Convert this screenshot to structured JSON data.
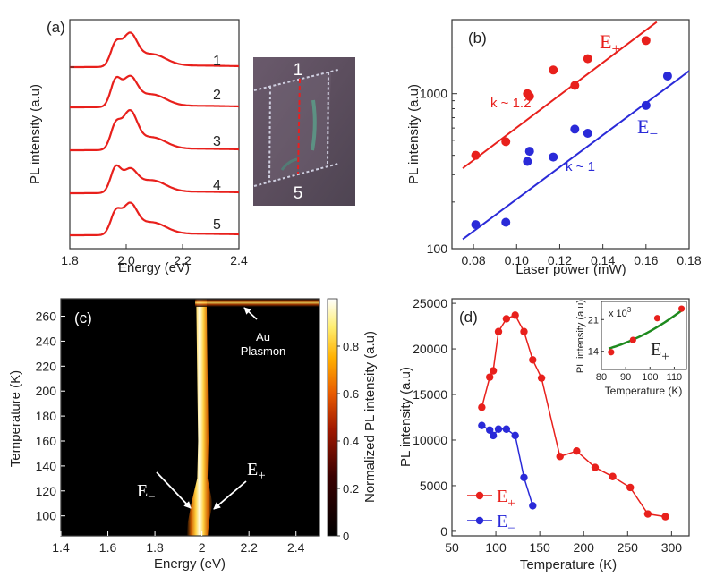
{
  "chart_data": [
    {
      "panel": "(a)",
      "type": "line",
      "xlabel": "Energy (eV)",
      "ylabel": "PL intensity (a.u)",
      "xlim": [
        1.8,
        2.4
      ],
      "xticks": [
        "1.8",
        "2.0",
        "2.2",
        "2.4"
      ],
      "color": "#e8201c",
      "series": [
        {
          "name": "1",
          "a1": 0.55,
          "a2": 0.8
        },
        {
          "name": "2",
          "a1": 0.65,
          "a2": 0.72
        },
        {
          "name": "3",
          "a1": 0.6,
          "a2": 0.95
        },
        {
          "name": "4",
          "a1": 0.62,
          "a2": 0.55
        },
        {
          "name": "5",
          "a1": 0.55,
          "a2": 0.75
        }
      ],
      "image_labels": [
        "1",
        "5"
      ]
    },
    {
      "panel": "(b)",
      "type": "scatter",
      "xlabel": "Laser power (mW)",
      "ylabel": "PL intensity (a.u)",
      "xlim": [
        0.07,
        0.18
      ],
      "ylim": [
        100,
        3000
      ],
      "yscale": "log",
      "xticks": [
        0.08,
        0.1,
        0.12,
        0.14,
        0.16,
        0.18
      ],
      "xtick_labels": [
        "0.08",
        "0.10",
        "0.12",
        "0.14",
        "0.16",
        "0.18"
      ],
      "yticks": [
        100,
        1000
      ],
      "ytick_labels": [
        "100",
        "1000"
      ],
      "series": [
        {
          "name": "E+",
          "label_main": "E",
          "label_sub": "+",
          "color": "#e8201c",
          "x": [
            0.081,
            0.095,
            0.105,
            0.106,
            0.117,
            0.127,
            0.133,
            0.16
          ],
          "y": [
            400,
            490,
            1000,
            960,
            1420,
            1130,
            1680,
            2200
          ],
          "fit": {
            "x": [
              0.075,
              0.165
            ],
            "y": [
              330,
              2900
            ]
          },
          "slope_label": "k ~ 1.2"
        },
        {
          "name": "E-",
          "label_main": "E",
          "label_sub": "−",
          "color": "#2a2ad8",
          "x": [
            0.081,
            0.095,
            0.105,
            0.106,
            0.117,
            0.127,
            0.133,
            0.16,
            0.17
          ],
          "y": [
            143,
            148,
            365,
            425,
            390,
            590,
            555,
            840,
            1300
          ],
          "fit": {
            "x": [
              0.075,
              0.18
            ],
            "y": [
              115,
              1400
            ]
          },
          "slope_label": "k ~ 1"
        }
      ]
    },
    {
      "panel": "(c)",
      "type": "heatmap",
      "xlabel": "Energy (eV)",
      "ylabel": "Temperature (K)",
      "colorbar_label": "Normalized PL intensity (a.u)",
      "xlim": [
        1.4,
        2.5
      ],
      "ylim": [
        84,
        274
      ],
      "xticks": [
        1.4,
        1.6,
        1.8,
        2.0,
        2.2,
        2.4
      ],
      "xtick_labels": [
        "1.4",
        "1.6",
        "1.8",
        "2",
        "2.2",
        "2.4"
      ],
      "yticks": [
        100,
        120,
        140,
        160,
        180,
        200,
        220,
        240,
        260
      ],
      "ytick_labels": [
        "100",
        "120",
        "140",
        "160",
        "180",
        "200",
        "220",
        "240",
        "260"
      ],
      "cbar_ticks": [
        0,
        0.2,
        0.4,
        0.6,
        0.8
      ],
      "cbar_tick_labels": [
        "0",
        "0.2",
        "0.4",
        "0.6",
        "0.8"
      ],
      "annotations": [
        "Au",
        "Plasmon"
      ],
      "arrow_labels": [
        {
          "main": "E",
          "sub": "−"
        },
        {
          "main": "E",
          "sub": "+"
        }
      ]
    },
    {
      "panel": "(d)",
      "type": "line",
      "xlabel": "Temperature (K)",
      "ylabel": "PL intensity (a.u)",
      "xlim": [
        50,
        320
      ],
      "ylim": [
        -500,
        25500
      ],
      "xticks": [
        50,
        100,
        150,
        200,
        250,
        300
      ],
      "xtick_labels": [
        "50",
        "100",
        "150",
        "200",
        "250",
        "300"
      ],
      "yticks": [
        0,
        5000,
        10000,
        15000,
        20000,
        25000
      ],
      "ytick_labels": [
        "0",
        "5000",
        "10000",
        "15000",
        "20000",
        "25000"
      ],
      "series": [
        {
          "name": "E+",
          "label_main": "E",
          "label_sub": "+",
          "color": "#e8201c",
          "x": [
            84,
            93,
            97,
            103,
            112,
            122,
            132,
            142,
            152,
            173,
            192,
            213,
            233,
            253,
            273,
            293
          ],
          "y": [
            13600,
            16900,
            17600,
            21900,
            23300,
            23700,
            21900,
            18800,
            16800,
            8200,
            8800,
            7000,
            6000,
            4800,
            1900,
            1600
          ]
        },
        {
          "name": "E-",
          "label_main": "E",
          "label_sub": "−",
          "color": "#2a2ad8",
          "x": [
            84,
            93,
            97,
            103,
            112,
            122,
            132,
            142
          ],
          "y": [
            11600,
            11100,
            10500,
            11200,
            11200,
            10500,
            5900,
            2800
          ]
        }
      ],
      "inset": {
        "xlabel": "Temperature (K)",
        "ylabel": "PL intensity (a.u)",
        "multiplier_label": "x 10",
        "multiplier_exp": "3",
        "xlim": [
          80,
          115
        ],
        "ylim": [
          10,
          25
        ],
        "xticks": [
          80,
          90,
          100,
          110
        ],
        "xtick_labels": [
          "80",
          "90",
          "100",
          "110"
        ],
        "yticks": [
          14,
          21
        ],
        "ytick_labels": [
          "14",
          "21"
        ],
        "points": {
          "x": [
            84,
            93,
            103,
            113
          ],
          "y": [
            13.8,
            16.5,
            21.3,
            23.4
          ],
          "color": "#e8201c"
        },
        "fit": {
          "x": [
            83,
            113
          ],
          "y": [
            14.6,
            23.0
          ],
          "color": "#1e8a1e"
        },
        "label_main": "E",
        "label_sub": "+"
      }
    }
  ]
}
